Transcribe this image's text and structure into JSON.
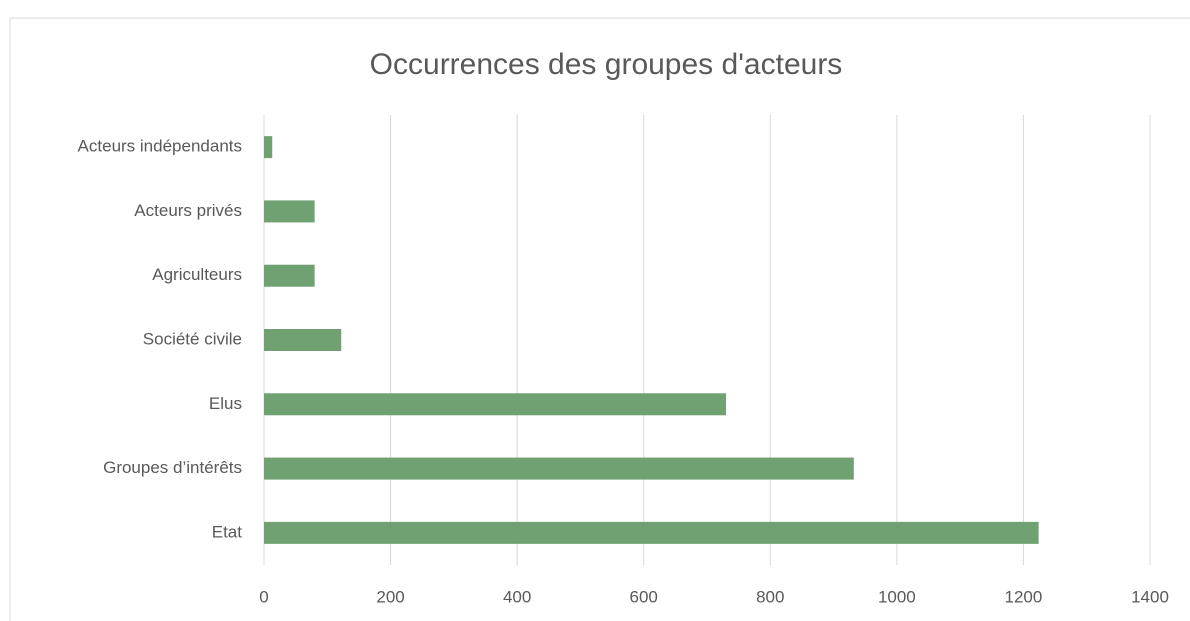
{
  "chart_data": {
    "type": "bar",
    "orientation": "horizontal",
    "title": "Occurrences des groupes d'acteurs",
    "categories": [
      "Acteurs indépendants",
      "Acteurs privés",
      "Agriculteurs",
      "Société civile",
      "Elus",
      "Groupes d’intérêts",
      "Etat"
    ],
    "values": [
      13,
      80,
      80,
      122,
      730,
      932,
      1224
    ],
    "color": "#70a173",
    "xlim": [
      0,
      1400
    ],
    "xticks": [
      0,
      200,
      400,
      600,
      800,
      1000,
      1200,
      1400
    ],
    "grid": true
  }
}
